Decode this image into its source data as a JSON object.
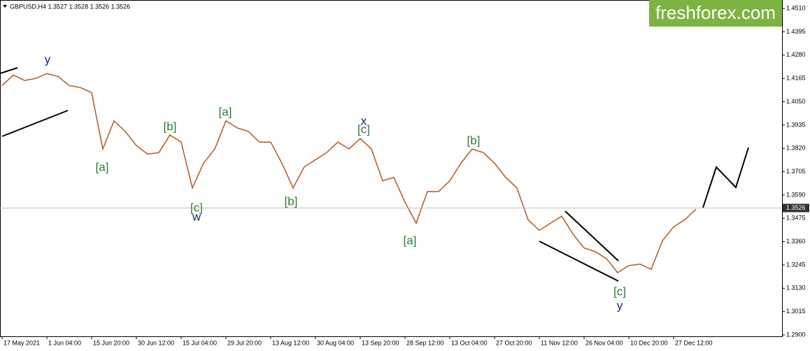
{
  "chart_data": {
    "type": "line",
    "title": "GBPUSD,H4 1.3527 1.3528 1.3526 1.3526",
    "watermark": "freshforex.com",
    "categories": [
      "17 May 2021",
      null,
      null,
      null,
      "1 Jun 04:00",
      null,
      null,
      null,
      "15 Jun 20:00",
      null,
      null,
      null,
      "30 Jun 12:00",
      null,
      null,
      null,
      "15 Jul 04:00",
      null,
      null,
      null,
      "29 Jul 20:00",
      null,
      null,
      null,
      "13 Aug 12:00",
      null,
      null,
      null,
      "30 Aug 04:00",
      null,
      null,
      null,
      "13 Sep 20:00",
      null,
      null,
      null,
      "28 Sep 12:00",
      null,
      null,
      null,
      "13 Oct 04:00",
      null,
      null,
      null,
      "27 Oct 20:00",
      null,
      null,
      null,
      "11 Nov 12:00",
      null,
      null,
      null,
      "26 Nov 04:00",
      null,
      null,
      null,
      "10 Dec 20:00",
      null,
      null,
      null,
      "27 Dec 12:00",
      null,
      null
    ],
    "series": [
      {
        "name": "GBPUSD",
        "color": "#b4591f",
        "values": [
          1.413,
          1.4182,
          1.4155,
          1.4165,
          1.4189,
          1.4175,
          1.413,
          1.412,
          1.4095,
          1.3817,
          1.3956,
          1.3904,
          1.3834,
          1.3792,
          1.3799,
          1.3886,
          1.3851,
          1.3625,
          1.3747,
          1.3817,
          1.3956,
          1.3921,
          1.3904,
          1.3851,
          1.3851,
          1.3747,
          1.3625,
          1.3729,
          1.3764,
          1.3799,
          1.3851,
          1.3817,
          1.3869,
          1.3817,
          1.366,
          1.3677,
          1.3555,
          1.3451,
          1.3607,
          1.3607,
          1.366,
          1.3747,
          1.3817,
          1.3799,
          1.3747,
          1.3677,
          1.3625,
          1.3468,
          1.3416,
          1.3451,
          1.3486,
          1.3398,
          1.3329,
          1.3311,
          1.3276,
          1.3207,
          1.3242,
          1.3249,
          1.3224,
          1.3364,
          1.3433,
          1.3468,
          1.352
        ]
      }
    ],
    "current_price": 1.3526,
    "ylim": [
      1.2893,
      1.4552
    ],
    "yticks": [
      {
        "value": 1.451,
        "label": "1.4510"
      },
      {
        "value": 1.4395,
        "label": "1.4395"
      },
      {
        "value": 1.428,
        "label": "1.4280"
      },
      {
        "value": 1.4165,
        "label": "1.4165"
      },
      {
        "value": 1.405,
        "label": "1.4050"
      },
      {
        "value": 1.3935,
        "label": "1.3935"
      },
      {
        "value": 1.382,
        "label": "1.3820"
      },
      {
        "value": 1.3705,
        "label": "1.3705"
      },
      {
        "value": 1.359,
        "label": "1.3590"
      },
      {
        "value": 1.3475,
        "label": "1.3475"
      },
      {
        "value": 1.336,
        "label": "1.3360"
      },
      {
        "value": 1.3245,
        "label": "1.3245"
      },
      {
        "value": 1.313,
        "label": "1.3130"
      },
      {
        "value": 1.3015,
        "label": "1.3015"
      },
      {
        "value": 1.29,
        "label": "1.2900"
      }
    ],
    "wave_labels": [
      {
        "text": "y",
        "color": "#1a237e"
      },
      {
        "text": "[a]",
        "color": "#2e7d32"
      },
      {
        "text": "[b]",
        "color": "#2e7d32"
      },
      {
        "text": "[c]",
        "color": "#2e7d32"
      },
      {
        "text": "w",
        "color": "#1a237e"
      },
      {
        "text": "[a]",
        "color": "#2e7d32"
      },
      {
        "text": "[b]",
        "color": "#2e7d32"
      },
      {
        "text": "x",
        "color": "#1a237e"
      },
      {
        "text": "[c]",
        "color": "#2e7d32"
      },
      {
        "text": "[a]",
        "color": "#2e7d32"
      },
      {
        "text": "[b]",
        "color": "#2e7d32"
      },
      {
        "text": "[c]",
        "color": "#2e7d32"
      },
      {
        "text": "y",
        "color": "#1a237e"
      }
    ]
  }
}
